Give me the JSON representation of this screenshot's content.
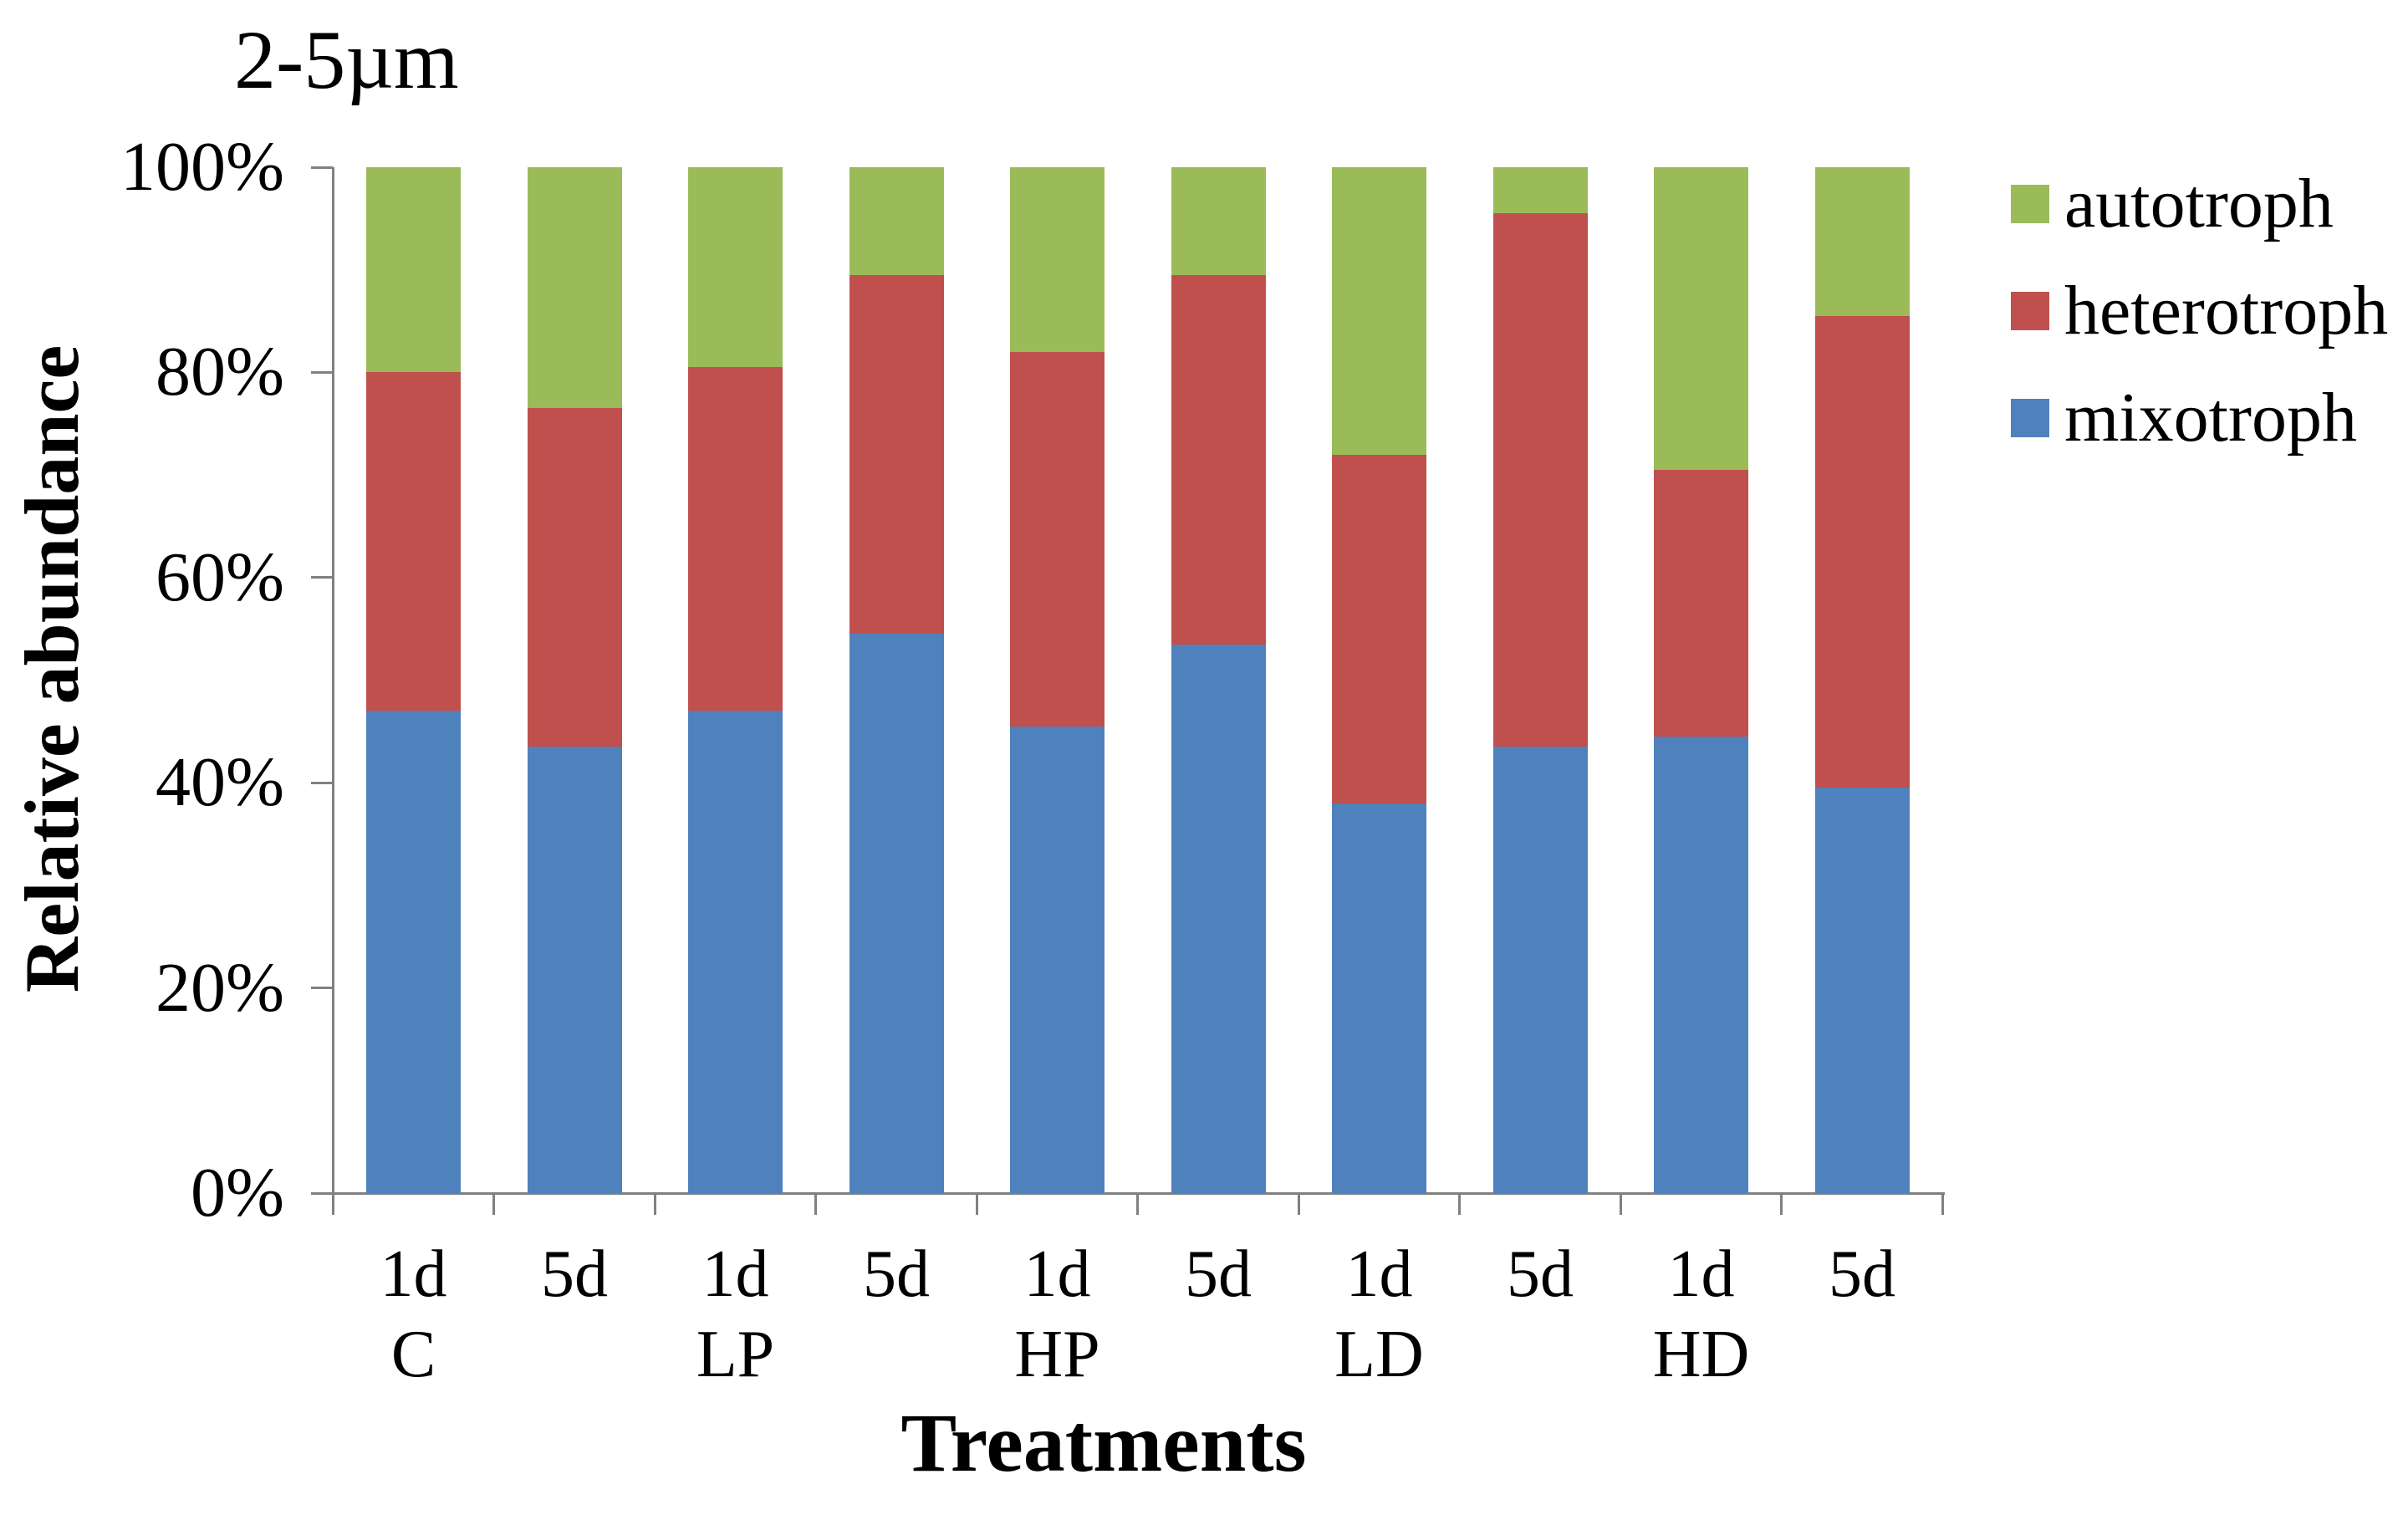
{
  "title": "2-5µm",
  "y_axis": {
    "title": "Relative abundance",
    "ticks": [
      {
        "label": "0%",
        "value": 0
      },
      {
        "label": "20%",
        "value": 20
      },
      {
        "label": "40%",
        "value": 40
      },
      {
        "label": "60%",
        "value": 60
      },
      {
        "label": "80%",
        "value": 80
      },
      {
        "label": "100%",
        "value": 100
      }
    ]
  },
  "x_axis": {
    "title": "Treatments"
  },
  "legend": [
    {
      "label": "autotroph",
      "series": "autotroph"
    },
    {
      "label": "heterotroph",
      "series": "heterotroph"
    },
    {
      "label": "mixotroph",
      "series": "mixotroph"
    }
  ],
  "colors": {
    "mixotroph": "#4F81BD",
    "heterotroph": "#C0504D",
    "autotroph": "#9BBB59",
    "axis": "#808080",
    "text": "#000000"
  },
  "chart_data": {
    "type": "bar",
    "stacked": true,
    "units": "%",
    "ylim": [
      0,
      100
    ],
    "grid": false,
    "legend_position": "right",
    "categories": [
      {
        "day": "1d",
        "group": "C"
      },
      {
        "day": "5d",
        "group": ""
      },
      {
        "day": "1d",
        "group": "LP"
      },
      {
        "day": "5d",
        "group": ""
      },
      {
        "day": "1d",
        "group": "HP"
      },
      {
        "day": "5d",
        "group": ""
      },
      {
        "day": "1d",
        "group": "LD"
      },
      {
        "day": "5d",
        "group": ""
      },
      {
        "day": "1d",
        "group": "HD"
      },
      {
        "day": "5d",
        "group": ""
      }
    ],
    "series": [
      {
        "name": "mixotroph",
        "values": [
          47,
          43.5,
          47,
          54.5,
          45.5,
          53.5,
          38,
          43.5,
          44.5,
          39.5
        ]
      },
      {
        "name": "heterotroph",
        "values": [
          33,
          33,
          33.5,
          35,
          36.5,
          36,
          34,
          52,
          26,
          46
        ]
      },
      {
        "name": "autotroph",
        "values": [
          20,
          23.5,
          19.5,
          10.5,
          18,
          10.5,
          28,
          4.5,
          29.5,
          14.5
        ]
      }
    ]
  }
}
